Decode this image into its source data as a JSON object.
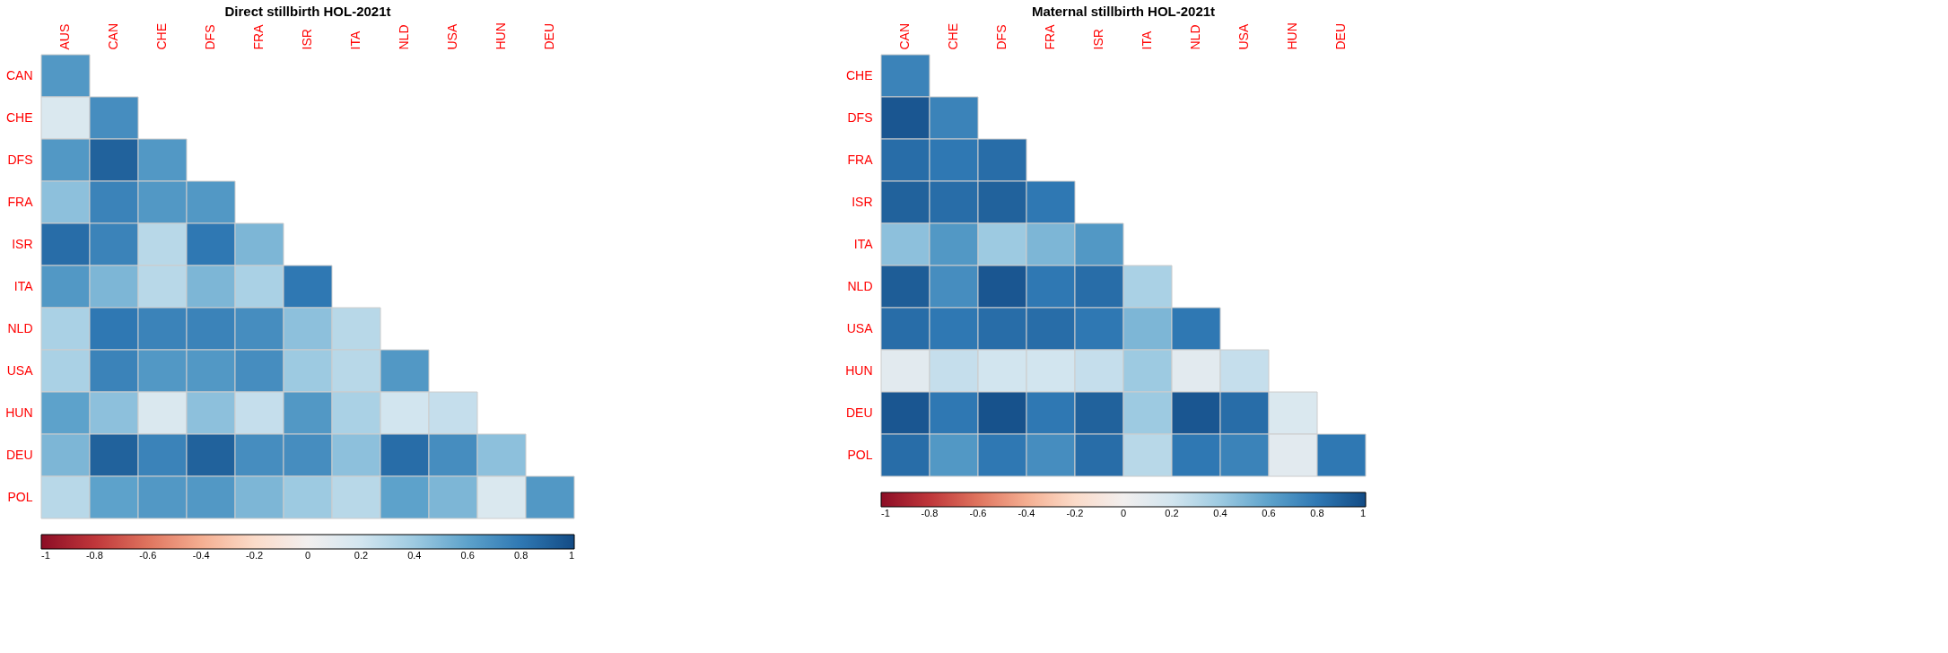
{
  "chart_data": [
    {
      "type": "heatmap",
      "title": "Direct stillbirth HOL-2021t",
      "categories": [
        "AUS",
        "CAN",
        "CHE",
        "DFS",
        "FRA",
        "ISR",
        "ITA",
        "NLD",
        "USA",
        "HUN",
        "DEU"
      ],
      "y_categories": [
        "CAN",
        "CHE",
        "DFS",
        "FRA",
        "ISR",
        "ITA",
        "NLD",
        "USA",
        "HUN",
        "DEU",
        "POL"
      ],
      "cells": [
        [
          0.65,
          null,
          null,
          null,
          null,
          null,
          null,
          null,
          null,
          null,
          null
        ],
        [
          0.15,
          0.7,
          null,
          null,
          null,
          null,
          null,
          null,
          null,
          null,
          null
        ],
        [
          0.65,
          0.9,
          0.65,
          null,
          null,
          null,
          null,
          null,
          null,
          null,
          null
        ],
        [
          0.45,
          0.75,
          0.65,
          0.65,
          null,
          null,
          null,
          null,
          null,
          null,
          null
        ],
        [
          0.85,
          0.75,
          0.3,
          0.8,
          0.5,
          null,
          null,
          null,
          null,
          null,
          null
        ],
        [
          0.65,
          0.5,
          0.3,
          0.5,
          0.35,
          0.8,
          null,
          null,
          null,
          null,
          null
        ],
        [
          0.35,
          0.8,
          0.75,
          0.75,
          0.7,
          0.45,
          0.3,
          null,
          null,
          null,
          null
        ],
        [
          0.35,
          0.75,
          0.65,
          0.65,
          0.7,
          0.4,
          0.3,
          0.65,
          null,
          null,
          null
        ],
        [
          0.6,
          0.45,
          0.15,
          0.45,
          0.25,
          0.65,
          0.35,
          0.2,
          0.25,
          null,
          null
        ],
        [
          0.5,
          0.9,
          0.75,
          0.9,
          0.7,
          0.7,
          0.45,
          0.85,
          0.7,
          0.45,
          null
        ],
        [
          0.3,
          0.6,
          0.65,
          0.65,
          0.5,
          0.4,
          0.3,
          0.6,
          0.5,
          0.15,
          0.65
        ]
      ],
      "clim": [
        -1,
        1
      ],
      "cticks": [
        -1,
        -0.8,
        -0.6,
        -0.4,
        -0.2,
        0,
        0.2,
        0.4,
        0.6,
        0.8,
        1
      ]
    },
    {
      "type": "heatmap",
      "title": "Maternal stillbirth HOL-2021t",
      "categories": [
        "CAN",
        "CHE",
        "DFS",
        "FRA",
        "ISR",
        "ITA",
        "NLD",
        "USA",
        "HUN",
        "DEU"
      ],
      "y_categories": [
        "CHE",
        "DFS",
        "FRA",
        "ISR",
        "ITA",
        "NLD",
        "USA",
        "HUN",
        "DEU",
        "POL"
      ],
      "cells": [
        [
          0.75,
          null,
          null,
          null,
          null,
          null,
          null,
          null,
          null,
          null
        ],
        [
          0.95,
          0.75,
          null,
          null,
          null,
          null,
          null,
          null,
          null,
          null
        ],
        [
          0.85,
          0.8,
          0.85,
          null,
          null,
          null,
          null,
          null,
          null,
          null
        ],
        [
          0.9,
          0.85,
          0.9,
          0.8,
          null,
          null,
          null,
          null,
          null,
          null
        ],
        [
          0.45,
          0.65,
          0.4,
          0.5,
          0.65,
          null,
          null,
          null,
          null,
          null
        ],
        [
          0.92,
          0.7,
          0.95,
          0.8,
          0.85,
          0.35,
          null,
          null,
          null,
          null
        ],
        [
          0.85,
          0.8,
          0.85,
          0.85,
          0.8,
          0.5,
          0.8,
          null,
          null,
          null
        ],
        [
          0.1,
          0.25,
          0.2,
          0.2,
          0.25,
          0.4,
          0.1,
          0.25,
          null,
          null
        ],
        [
          0.95,
          0.8,
          0.97,
          0.8,
          0.9,
          0.4,
          0.95,
          0.85,
          0.15,
          null
        ],
        [
          0.85,
          0.65,
          0.8,
          0.7,
          0.85,
          0.3,
          0.8,
          0.75,
          0.1,
          0.8
        ]
      ],
      "clim": [
        -1,
        1
      ],
      "cticks": [
        -1,
        -0.8,
        -0.6,
        -0.4,
        -0.2,
        0,
        0.2,
        0.4,
        0.6,
        0.8,
        1
      ]
    }
  ]
}
